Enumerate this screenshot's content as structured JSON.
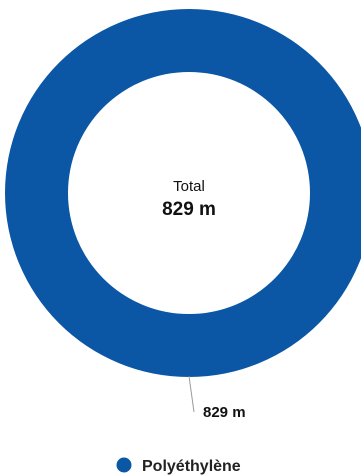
{
  "chart_data": {
    "type": "pie",
    "variant": "donut",
    "center": {
      "label": "Total",
      "value_text": "829 m"
    },
    "slices": [
      {
        "name": "Polyéthylène",
        "value": 829,
        "value_text": "829 m",
        "color": "#0b56a5"
      }
    ],
    "legend": {
      "placement": "bottom"
    }
  }
}
